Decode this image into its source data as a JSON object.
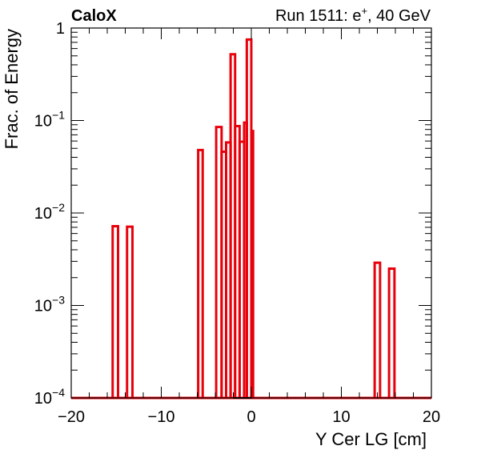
{
  "header": {
    "left_title": "CaloX",
    "right_title": "Run 1511: e",
    "right_title_sup": "+",
    "right_title_suffix": ", 40 GeV"
  },
  "chart_data": {
    "type": "step",
    "xlabel": "Y Cer LG [cm]",
    "ylabel": "Frac. of Energy",
    "xlim": [
      -20,
      20
    ],
    "ylim": [
      0.0001,
      1
    ],
    "ylog": true,
    "grid": false,
    "x_ticks": [
      -20,
      -10,
      0,
      10,
      20
    ],
    "x_tick_labels": [
      "−20",
      "−10",
      "0",
      "10",
      "20"
    ],
    "y_ticks": [
      {
        "value": 1,
        "base": "1",
        "exp": ""
      },
      {
        "value": 0.1,
        "base": "10",
        "exp": "−1"
      },
      {
        "value": 0.01,
        "base": "10",
        "exp": "−2"
      },
      {
        "value": 0.001,
        "base": "10",
        "exp": "−3"
      },
      {
        "value": 0.0001,
        "base": "10",
        "exp": "−4"
      }
    ],
    "line_color": "#e8000b",
    "series": [
      {
        "bins": [
          {
            "x0": -15.4,
            "x1": -14.8,
            "y": 0.0072
          },
          {
            "x0": -13.8,
            "x1": -13.2,
            "y": 0.0071
          },
          {
            "x0": -5.9,
            "x1": -5.4,
            "y": 0.048
          },
          {
            "x0": -3.9,
            "x1": -3.3,
            "y": 0.085
          },
          {
            "x0": -3.3,
            "x1": -2.8,
            "y": 0.046
          },
          {
            "x0": -2.8,
            "x1": -2.3,
            "y": 0.058
          },
          {
            "x0": -2.3,
            "x1": -1.8,
            "y": 0.52
          },
          {
            "x0": -1.8,
            "x1": -1.3,
            "y": 0.087
          },
          {
            "x0": -1.3,
            "x1": -0.8,
            "y": 0.059
          },
          {
            "x0": -0.8,
            "x1": -0.5,
            "y": 0.095
          },
          {
            "x0": -0.5,
            "x1": 0.0,
            "y": 0.75
          },
          {
            "x0": 0.0,
            "x1": 0.2,
            "y": 0.077
          },
          {
            "x0": 13.7,
            "x1": 14.3,
            "y": 0.0029
          },
          {
            "x0": 15.3,
            "x1": 15.9,
            "y": 0.0025
          }
        ]
      }
    ]
  }
}
